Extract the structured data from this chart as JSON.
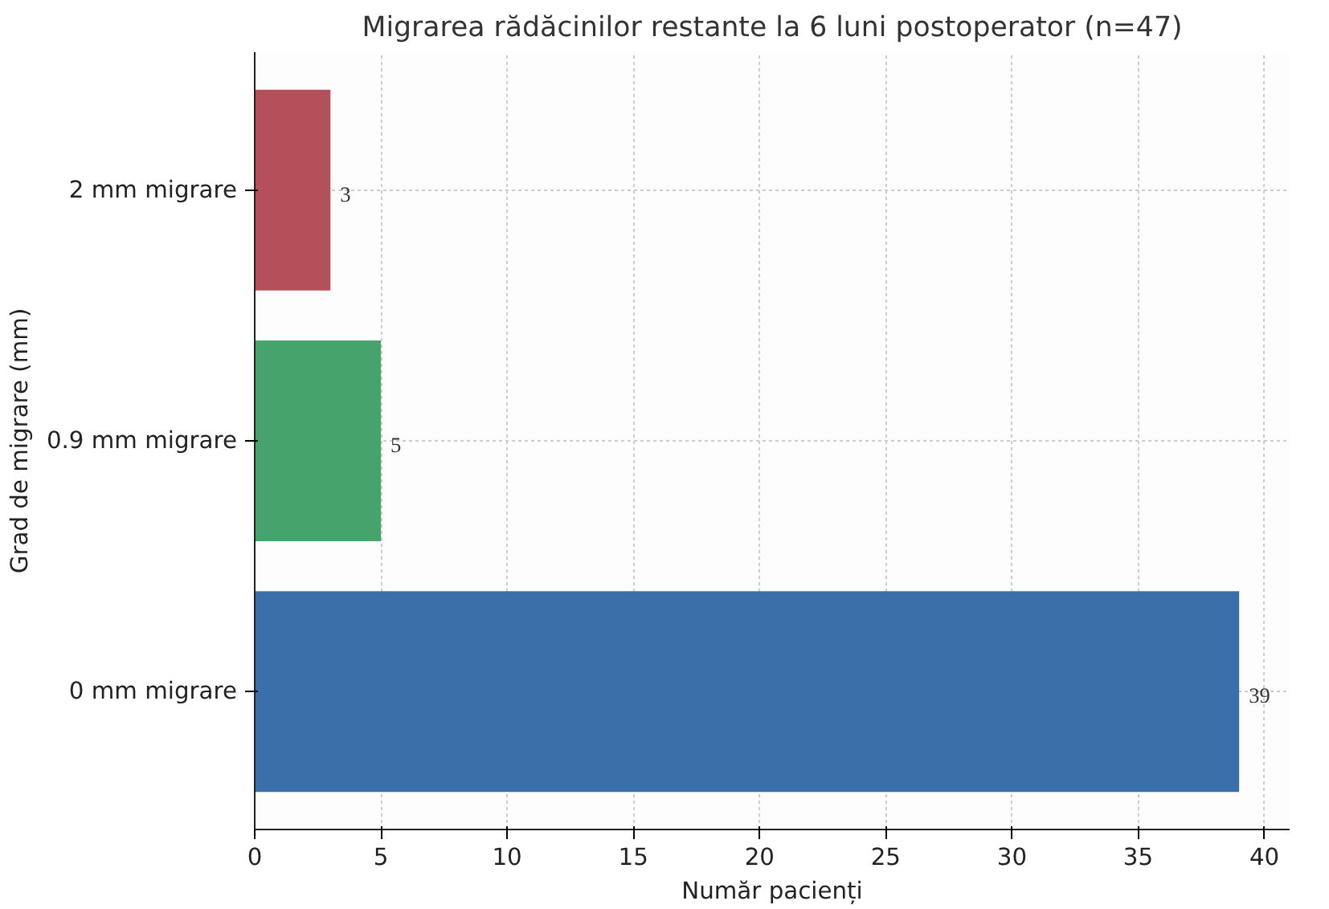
{
  "chart_data": {
    "type": "bar",
    "orientation": "horizontal",
    "title": "Migrarea rădăcinilor restante la 6 luni postoperator (n=47)",
    "xlabel": "Număr pacienți",
    "ylabel": "Grad de migrare (mm)",
    "categories": [
      "2 mm migrare",
      "0.9 mm migrare",
      "0 mm migrare"
    ],
    "values": [
      3,
      5,
      39
    ],
    "colors": [
      "#b5505a",
      "#45a36b",
      "#3a70aa"
    ],
    "xlim": [
      0,
      41
    ],
    "xticks": [
      0,
      5,
      10,
      15,
      20,
      25,
      30,
      35,
      40
    ],
    "grid": true,
    "data_labels": true
  }
}
